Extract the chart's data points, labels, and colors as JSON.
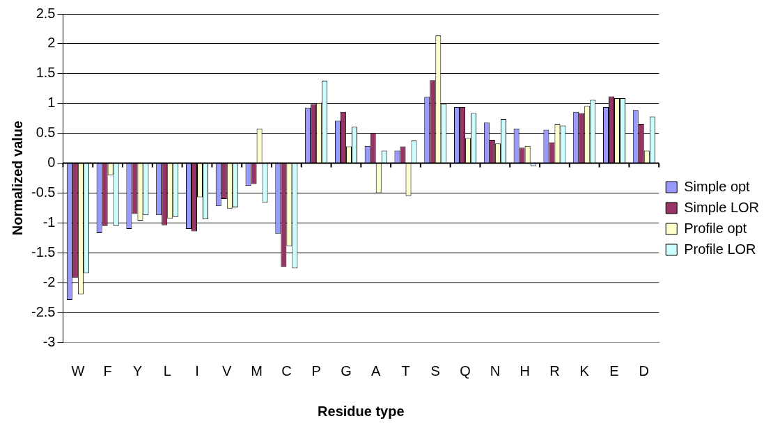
{
  "chart_data": {
    "type": "bar",
    "xlabel": "Residue type",
    "ylabel": "Normalized value",
    "categories": [
      "W",
      "F",
      "Y",
      "L",
      "I",
      "V",
      "M",
      "C",
      "P",
      "G",
      "A",
      "T",
      "S",
      "Q",
      "N",
      "H",
      "R",
      "K",
      "E",
      "D"
    ],
    "series": [
      {
        "name": "Simple opt",
        "color": "#9999ff",
        "values": [
          -2.29,
          -1.17,
          -1.1,
          -0.87,
          -1.1,
          -0.72,
          -0.38,
          -1.18,
          0.93,
          0.71,
          0.29,
          0.21,
          1.11,
          0.94,
          0.68,
          0.58,
          0.56,
          0.86,
          0.94,
          0.89
        ]
      },
      {
        "name": "Simple LOR",
        "color": "#993366",
        "values": [
          -1.92,
          -1.05,
          -0.85,
          -1.04,
          -1.14,
          -0.6,
          -0.35,
          -1.74,
          0.99,
          0.86,
          0.51,
          0.28,
          1.39,
          0.94,
          0.39,
          0.26,
          0.35,
          0.84,
          1.12,
          0.66
        ]
      },
      {
        "name": "Profile opt",
        "color": "#ffffcc",
        "values": [
          -2.2,
          -0.2,
          -0.96,
          -0.93,
          -0.57,
          -0.76,
          0.58,
          -1.39,
          1.01,
          0.28,
          -0.5,
          -0.55,
          2.14,
          0.42,
          0.33,
          0.29,
          0.66,
          0.96,
          1.09,
          0.21
        ]
      },
      {
        "name": "Profile LOR",
        "color": "#ccffff",
        "values": [
          -1.84,
          -1.05,
          -0.87,
          -0.9,
          -0.94,
          -0.74,
          -0.66,
          -1.76,
          1.38,
          0.61,
          0.21,
          0.38,
          0.99,
          0.84,
          0.74,
          -0.05,
          0.63,
          1.06,
          1.09,
          0.78
        ]
      }
    ],
    "ylim": [
      -3,
      2.5
    ],
    "yticks": [
      -3,
      -2.5,
      -2,
      -1.5,
      -1,
      -0.5,
      0,
      0.5,
      1,
      1.5,
      2,
      2.5
    ],
    "grid": "y",
    "legend": "right"
  }
}
